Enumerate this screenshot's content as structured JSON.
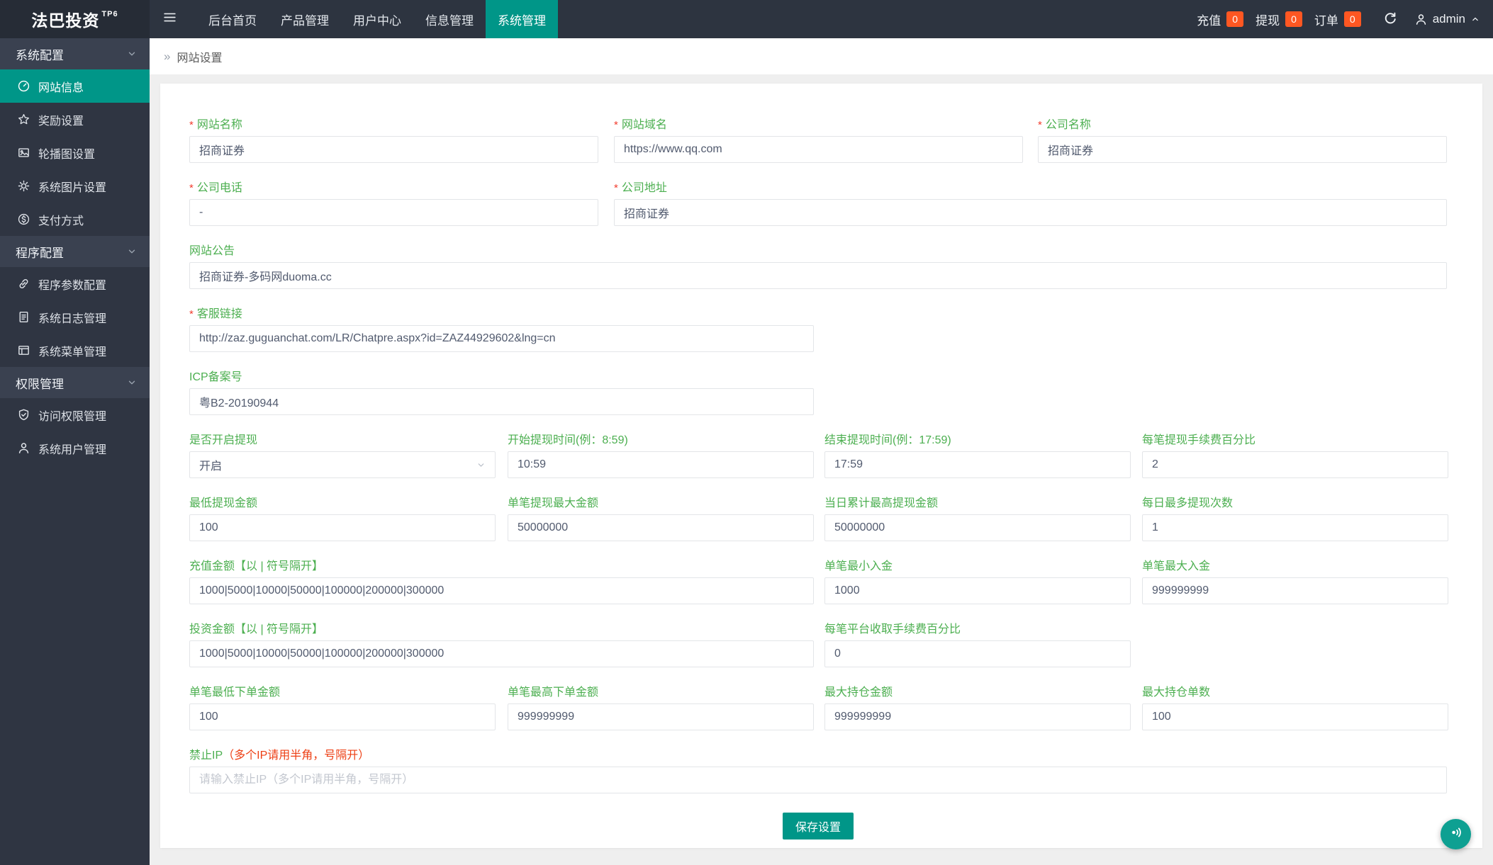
{
  "topbar": {
    "logo": "法巴投资",
    "logo_badge": "TP6",
    "nav": [
      {
        "label": "后台首页",
        "active": false
      },
      {
        "label": "产品管理",
        "active": false
      },
      {
        "label": "用户中心",
        "active": false
      },
      {
        "label": "信息管理",
        "active": false
      },
      {
        "label": "系统管理",
        "active": true
      }
    ],
    "counters": [
      {
        "label": "充值",
        "count": "0"
      },
      {
        "label": "提现",
        "count": "0"
      },
      {
        "label": "订单",
        "count": "0"
      }
    ],
    "user": "admin"
  },
  "sidebar": {
    "groups": [
      {
        "title": "系统配置",
        "items": [
          {
            "label": "网站信息",
            "icon": "gauge-icon",
            "active": true
          },
          {
            "label": "奖励设置",
            "icon": "star-icon",
            "active": false
          },
          {
            "label": "轮播图设置",
            "icon": "image-icon",
            "active": false
          },
          {
            "label": "系统图片设置",
            "icon": "gear-icon",
            "active": false
          },
          {
            "label": "支付方式",
            "icon": "dollar-icon",
            "active": false
          }
        ]
      },
      {
        "title": "程序配置",
        "items": [
          {
            "label": "程序参数配置",
            "icon": "link-icon",
            "active": false
          },
          {
            "label": "系统日志管理",
            "icon": "log-icon",
            "active": false
          },
          {
            "label": "系统菜单管理",
            "icon": "menu-icon",
            "active": false
          }
        ]
      },
      {
        "title": "权限管理",
        "items": [
          {
            "label": "访问权限管理",
            "icon": "shield-icon",
            "active": false
          },
          {
            "label": "系统用户管理",
            "icon": "user-icon",
            "active": false
          }
        ]
      }
    ]
  },
  "breadcrumb": {
    "arrow": "»",
    "title": "网站设置"
  },
  "form": {
    "required_mark": "*",
    "save_label": "保存设置",
    "rows": [
      [
        {
          "label": "网站名称",
          "required": true,
          "value": "招商证券"
        },
        {
          "label": "网站域名",
          "required": true,
          "value": "https://www.qq.com"
        },
        {
          "label": "公司名称",
          "required": true,
          "value": "招商证券"
        }
      ],
      [
        {
          "label": "公司电话",
          "required": true,
          "value": "-"
        },
        {
          "label": "公司地址",
          "required": true,
          "value": "招商证券"
        }
      ],
      [
        {
          "label": "网站公告",
          "required": false,
          "value": "招商证券-多码网duoma.cc"
        }
      ],
      [
        {
          "label": "客服链接",
          "required": true,
          "value": "http://zaz.guguanchat.com/LR/Chatpre.aspx?id=ZAZ44929602&lng=cn"
        }
      ],
      [
        {
          "label": "ICP备案号",
          "required": false,
          "value": "粤B2-20190944"
        }
      ],
      [
        {
          "label": "是否开启提现",
          "required": false,
          "type": "select",
          "value": "开启"
        },
        {
          "label": "开始提现时间(例：8:59)",
          "required": false,
          "value": "10:59"
        },
        {
          "label": "结束提现时间(例：17:59)",
          "required": false,
          "value": "17:59"
        },
        {
          "label": "每笔提现手续费百分比",
          "required": false,
          "value": "2"
        }
      ],
      [
        {
          "label": "最低提现金额",
          "required": false,
          "value": "100"
        },
        {
          "label": "单笔提现最大金额",
          "required": false,
          "value": "50000000"
        },
        {
          "label": "当日累计最高提现金额",
          "required": false,
          "value": "50000000"
        },
        {
          "label": "每日最多提现次数",
          "required": false,
          "value": "1"
        }
      ],
      [
        {
          "label": "充值金额【以 | 符号隔开】",
          "required": false,
          "value": "1000|5000|10000|50000|100000|200000|300000"
        },
        {
          "label": "单笔最小入金",
          "required": false,
          "value": "1000"
        },
        {
          "label": "单笔最大入金",
          "required": false,
          "value": "999999999"
        }
      ],
      [
        {
          "label": "投资金额【以 | 符号隔开】",
          "required": false,
          "value": "1000|5000|10000|50000|100000|200000|300000"
        },
        {
          "label": "每笔平台收取手续费百分比",
          "required": false,
          "value": "0"
        }
      ],
      [
        {
          "label": "单笔最低下单金额",
          "required": false,
          "value": "100"
        },
        {
          "label": "单笔最高下单金额",
          "required": false,
          "value": "999999999"
        },
        {
          "label": "最大持仓金额",
          "required": false,
          "value": "999999999"
        },
        {
          "label": "最大持仓单数",
          "required": false,
          "value": "100"
        }
      ],
      [
        {
          "label": "禁止IP",
          "label_red": "（多个IP请用半角，号隔开）",
          "required": false,
          "placeholder": "请输入禁止IP（多个IP请用半角，号隔开）"
        }
      ]
    ]
  },
  "colors": {
    "accent_teal": "#009688",
    "badge_orange": "#ff5722",
    "label_green": "#4caf50",
    "label_red": "#ed3f14",
    "topbar_dark": "#2d3440",
    "sidebar_dark": "#2f3542"
  }
}
